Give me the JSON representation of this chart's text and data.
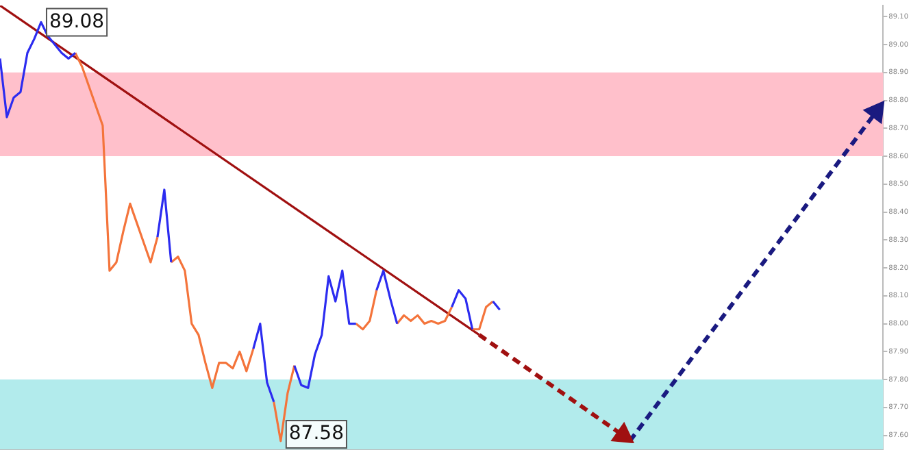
{
  "chart_data": {
    "type": "line",
    "categories": [
      null,
      null,
      null,
      null,
      null,
      null,
      null,
      null,
      null,
      null,
      null,
      null,
      null,
      null,
      null,
      null,
      null,
      null,
      null,
      null,
      null,
      null,
      null,
      null,
      null,
      null,
      null,
      null,
      null,
      null,
      null,
      null,
      null,
      null,
      null,
      null,
      null,
      null,
      null,
      null,
      null,
      null,
      null,
      null,
      null,
      null,
      null,
      null,
      null,
      null,
      null,
      null,
      null,
      null,
      null,
      null,
      null,
      null,
      null,
      null,
      null,
      null,
      null,
      null,
      null,
      null,
      null,
      null,
      null,
      null,
      null,
      null,
      null,
      null,
      null,
      null,
      null,
      null,
      null,
      null,
      null,
      null,
      null,
      null,
      null,
      null,
      null,
      null,
      null,
      null,
      null,
      null,
      null,
      null,
      null,
      null,
      null,
      null,
      null,
      null,
      null,
      null,
      null,
      null,
      null,
      null,
      null,
      null,
      null,
      null,
      null,
      null,
      null,
      null,
      null,
      null,
      null,
      null,
      null,
      null,
      null,
      null,
      null,
      null,
      null,
      null,
      null,
      null,
      null,
      null
    ],
    "ylim": [
      87.55,
      89.14
    ],
    "yticks": [
      {
        "value": 87.6,
        "label": "87.60"
      },
      {
        "value": 87.7,
        "label": "87.70"
      },
      {
        "value": 87.8,
        "label": "87.80"
      },
      {
        "value": 87.9,
        "label": "87.90"
      },
      {
        "value": 88.0,
        "label": "88.00"
      },
      {
        "value": 88.1,
        "label": "88.10"
      },
      {
        "value": 88.2,
        "label": "88.20"
      },
      {
        "value": 88.3,
        "label": "88.30"
      },
      {
        "value": 88.4,
        "label": "88.40"
      },
      {
        "value": 88.5,
        "label": "88.50"
      },
      {
        "value": 88.6,
        "label": "88.60"
      },
      {
        "value": 88.7,
        "label": "88.70"
      },
      {
        "value": 88.8,
        "label": "88.80"
      },
      {
        "value": 88.9,
        "label": "88.90"
      },
      {
        "value": 89.0,
        "label": "89.00"
      },
      {
        "value": 89.1,
        "label": "89.10"
      }
    ],
    "tick_labels": "y",
    "grid": false,
    "legend": false,
    "series": [
      {
        "color": "#2c2cf0",
        "values": [
          88.95,
          88.74,
          88.81,
          88.83,
          88.97,
          89.02,
          89.08,
          89.03,
          89.0,
          88.97,
          88.95,
          88.97,
          null,
          null,
          null,
          null,
          null,
          null,
          null,
          null,
          null,
          null,
          null,
          88.31,
          88.48,
          88.22,
          null,
          null,
          null,
          null,
          null,
          null,
          null,
          null,
          null,
          null,
          null,
          87.91,
          88.0,
          87.79,
          87.72,
          null,
          null,
          87.85,
          87.78,
          87.77,
          87.89,
          87.96,
          88.17,
          88.08,
          88.19,
          88.0,
          88.0,
          null,
          null,
          88.12,
          88.19,
          88.09,
          88.0,
          null,
          null,
          null,
          null,
          null,
          null,
          null,
          88.06,
          88.12,
          88.09,
          87.98,
          null,
          null,
          88.08,
          88.05,
          null,
          null,
          null,
          null,
          null,
          null,
          null,
          null,
          null,
          null,
          null,
          null,
          null,
          null,
          null,
          null,
          null,
          null,
          null,
          null,
          null,
          null,
          null,
          null,
          null,
          null,
          null,
          null,
          null,
          null,
          null,
          null,
          null,
          null,
          null,
          null,
          null,
          null,
          null,
          null,
          null,
          null,
          null,
          null,
          null,
          null,
          null,
          null,
          null,
          null,
          null,
          null,
          null,
          null,
          null,
          null
        ]
      },
      {
        "color": "#f4743b",
        "values": [
          null,
          null,
          null,
          null,
          null,
          null,
          null,
          null,
          null,
          null,
          null,
          88.97,
          88.92,
          88.85,
          88.78,
          88.71,
          88.19,
          88.22,
          88.33,
          88.43,
          88.36,
          88.29,
          88.22,
          88.31,
          null,
          88.22,
          88.24,
          88.19,
          88.0,
          87.96,
          87.86,
          87.77,
          87.86,
          87.86,
          87.84,
          87.9,
          87.83,
          87.91,
          null,
          null,
          87.72,
          87.58,
          87.75,
          87.85,
          null,
          null,
          null,
          null,
          null,
          null,
          null,
          null,
          88.0,
          87.98,
          88.01,
          88.12,
          null,
          null,
          88.0,
          88.03,
          88.01,
          88.03,
          88.0,
          88.01,
          88.0,
          88.01,
          88.06,
          null,
          null,
          87.98,
          87.98,
          88.06,
          88.08,
          null,
          null,
          null,
          null,
          null,
          null,
          null,
          null,
          null,
          null,
          null,
          null,
          null,
          null,
          null,
          null,
          null,
          null,
          null,
          null,
          null,
          null,
          null,
          null,
          null,
          null,
          null,
          null,
          null,
          null,
          null,
          null,
          null,
          null,
          null,
          null,
          null,
          null,
          null,
          null,
          null,
          null,
          null,
          null,
          null,
          null,
          null,
          null,
          null,
          null,
          null,
          null,
          null,
          null,
          null,
          null,
          null
        ]
      },
      {
        "color": "#a01010",
        "line_style": "solid",
        "values": [
          89.14,
          null,
          null,
          null,
          null,
          null,
          null,
          null,
          null,
          null,
          null,
          null,
          null,
          null,
          null,
          null,
          null,
          null,
          null,
          null,
          null,
          null,
          null,
          null,
          null,
          null,
          null,
          null,
          null,
          null,
          null,
          null,
          null,
          null,
          null,
          null,
          null,
          null,
          null,
          null,
          null,
          null,
          null,
          null,
          null,
          null,
          null,
          null,
          null,
          null,
          null,
          null,
          null,
          null,
          null,
          null,
          null,
          null,
          null,
          null,
          null,
          null,
          null,
          null,
          null,
          null,
          null,
          null,
          null,
          null,
          87.96,
          null,
          null,
          null,
          null,
          null,
          null,
          null,
          null,
          null,
          null,
          null,
          null,
          null,
          null,
          null,
          null,
          null,
          null,
          null,
          null,
          null,
          null,
          null,
          null,
          null,
          null,
          null,
          null,
          null,
          null,
          null,
          null,
          null,
          null,
          null,
          null,
          null,
          null,
          null,
          null,
          null,
          null,
          null,
          null,
          null,
          null,
          null,
          null,
          null,
          null,
          null,
          null,
          null,
          null,
          null,
          null,
          null,
          null,
          null
        ]
      },
      {
        "color": "#a01010",
        "line_style": "dashed",
        "values": [
          null,
          null,
          null,
          null,
          null,
          null,
          null,
          null,
          null,
          null,
          null,
          null,
          null,
          null,
          null,
          null,
          null,
          null,
          null,
          null,
          null,
          null,
          null,
          null,
          null,
          null,
          null,
          null,
          null,
          null,
          null,
          null,
          null,
          null,
          null,
          null,
          null,
          null,
          null,
          null,
          null,
          null,
          null,
          null,
          null,
          null,
          null,
          null,
          null,
          null,
          null,
          null,
          null,
          null,
          null,
          null,
          null,
          null,
          null,
          null,
          null,
          null,
          null,
          null,
          null,
          null,
          null,
          null,
          null,
          null,
          87.96,
          null,
          null,
          null,
          null,
          null,
          null,
          null,
          null,
          null,
          null,
          null,
          null,
          null,
          null,
          null,
          null,
          null,
          null,
          null,
          null,
          87.6,
          null,
          null,
          null,
          null,
          null,
          null,
          null,
          null,
          null,
          null,
          null,
          null,
          null,
          null,
          null,
          null,
          null,
          null,
          null,
          null,
          null,
          null,
          null,
          null,
          null,
          null,
          null,
          null,
          null,
          null,
          null,
          null,
          null,
          null,
          null,
          null,
          null,
          null
        ]
      },
      {
        "color": "#1a1a80",
        "line_style": "dashed",
        "values": [
          null,
          null,
          null,
          null,
          null,
          null,
          null,
          null,
          null,
          null,
          null,
          null,
          null,
          null,
          null,
          null,
          null,
          null,
          null,
          null,
          null,
          null,
          null,
          null,
          null,
          null,
          null,
          null,
          null,
          null,
          null,
          null,
          null,
          null,
          null,
          null,
          null,
          null,
          null,
          null,
          null,
          null,
          null,
          null,
          null,
          null,
          null,
          null,
          null,
          null,
          null,
          null,
          null,
          null,
          null,
          null,
          null,
          null,
          null,
          null,
          null,
          null,
          null,
          null,
          null,
          null,
          null,
          null,
          null,
          null,
          null,
          null,
          null,
          null,
          null,
          null,
          null,
          null,
          null,
          null,
          null,
          null,
          null,
          null,
          null,
          null,
          null,
          null,
          null,
          null,
          null,
          null,
          87.58,
          null,
          null,
          null,
          null,
          null,
          null,
          null,
          null,
          null,
          null,
          null,
          null,
          null,
          null,
          null,
          null,
          null,
          null,
          null,
          null,
          null,
          null,
          null,
          null,
          null,
          null,
          null,
          null,
          null,
          null,
          null,
          null,
          null,
          null,
          null,
          88.76,
          null
        ]
      }
    ],
    "bands": [
      {
        "axis": "y",
        "from": 88.6,
        "to": 88.9,
        "color": "#ffc0cb"
      },
      {
        "axis": "y",
        "from": 87.55,
        "to": 87.8,
        "color": "#b2ebec"
      }
    ],
    "annotations": [
      "89.08",
      "87.58"
    ]
  }
}
